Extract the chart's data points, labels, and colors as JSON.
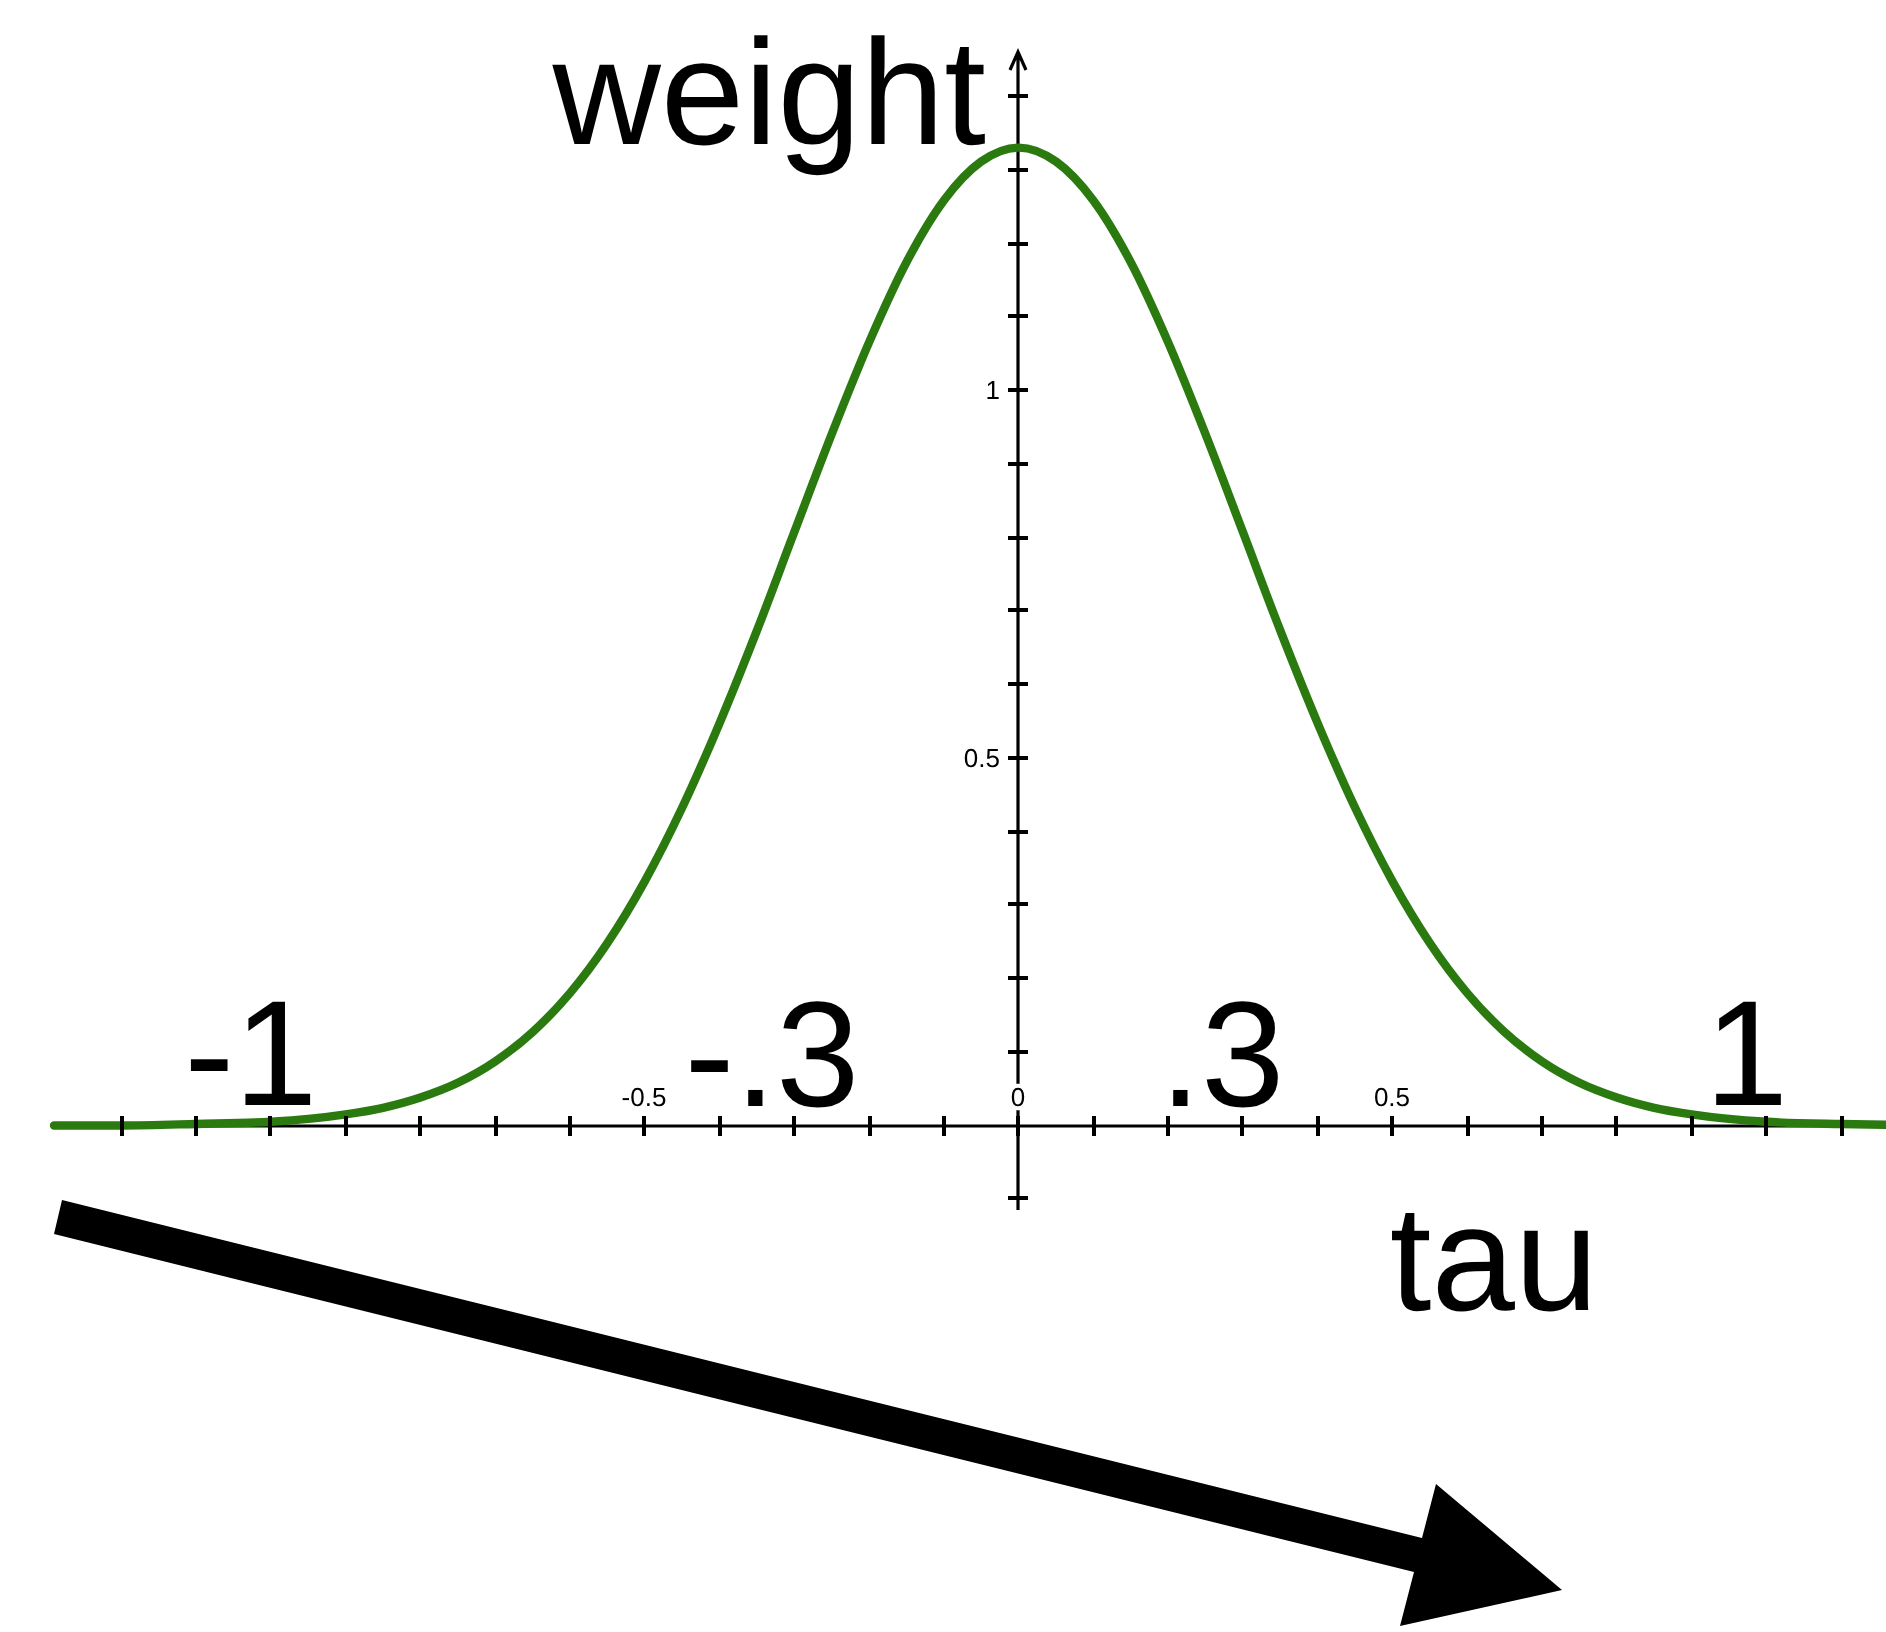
{
  "chart_data": {
    "type": "line",
    "xlabel": "tau",
    "ylabel": "weight",
    "x": [
      -1.29,
      -1.2,
      -1.1,
      -1.0,
      -0.9,
      -0.85,
      -0.8,
      -0.75,
      -0.7,
      -0.65,
      -0.6,
      -0.55,
      -0.5,
      -0.45,
      -0.4,
      -0.35,
      -0.3,
      -0.25,
      -0.2,
      -0.15,
      -0.1,
      -0.05,
      0,
      0.05,
      0.1,
      0.15,
      0.2,
      0.25,
      0.3,
      0.35,
      0.4,
      0.45,
      0.5,
      0.55,
      0.6,
      0.65,
      0.7,
      0.75,
      0.8,
      0.85,
      0.9,
      1.0,
      1.1,
      1.16
    ],
    "series": [
      {
        "color": "#2a7a10",
        "values": [
          0.0,
          0.0,
          0.002,
          0.005,
          0.015,
          0.024,
          0.038,
          0.058,
          0.087,
          0.127,
          0.18,
          0.248,
          0.332,
          0.432,
          0.547,
          0.673,
          0.807,
          0.94,
          1.065,
          1.174,
          1.258,
          1.311,
          1.33,
          1.311,
          1.258,
          1.174,
          1.065,
          0.94,
          0.807,
          0.673,
          0.547,
          0.432,
          0.332,
          0.248,
          0.18,
          0.127,
          0.087,
          0.058,
          0.038,
          0.024,
          0.015,
          0.005,
          0.002,
          0.001
        ]
      }
    ],
    "xlim": [
      -1.29,
      1.16
    ],
    "ylim": [
      -0.115,
      1.46
    ],
    "xticks": [
      {
        "value": -1.2,
        "label": null
      },
      {
        "value": -1.1,
        "label": null
      },
      {
        "value": -1,
        "label": null
      },
      {
        "value": -0.9,
        "label": null
      },
      {
        "value": -0.8,
        "label": null
      },
      {
        "value": -0.7,
        "label": null
      },
      {
        "value": -0.6,
        "label": null
      },
      -0.5,
      {
        "value": -0.4,
        "label": null
      },
      {
        "value": -0.3,
        "label": null
      },
      {
        "value": -0.2,
        "label": null
      },
      {
        "value": -0.1,
        "label": null
      },
      0,
      {
        "value": 0.1,
        "label": null
      },
      {
        "value": 0.2,
        "label": null
      },
      {
        "value": 0.3,
        "label": null
      },
      {
        "value": 0.4,
        "label": null
      },
      0.5,
      {
        "value": 0.6,
        "label": null
      },
      {
        "value": 0.7,
        "label": null
      },
      {
        "value": 0.8,
        "label": null
      },
      {
        "value": 0.9,
        "label": null
      },
      {
        "value": 1,
        "label": null
      },
      {
        "value": 1.1,
        "label": null
      }
    ],
    "yticks": [
      {
        "value": -0.1,
        "label": null
      },
      {
        "value": 0.1,
        "label": null
      },
      {
        "value": 0.2,
        "label": null
      },
      {
        "value": 0.3,
        "label": null
      },
      {
        "value": 0.4,
        "label": null
      },
      0.5,
      {
        "value": 0.6,
        "label": null
      },
      {
        "value": 0.7,
        "label": null
      },
      {
        "value": 0.8,
        "label": null
      },
      {
        "value": 0.9,
        "label": null
      },
      1,
      {
        "value": 1.1,
        "label": null
      },
      {
        "value": 1.2,
        "label": null
      },
      {
        "value": 1.3,
        "label": null
      },
      {
        "value": 1.4,
        "label": null
      }
    ],
    "annotations": [
      {
        "text": "-1",
        "x": -1,
        "y": 0
      },
      "-.3",
      ".3",
      {
        "text": "1",
        "x": 1,
        "y": 0
      }
    ],
    "line_style": "solid"
  }
}
